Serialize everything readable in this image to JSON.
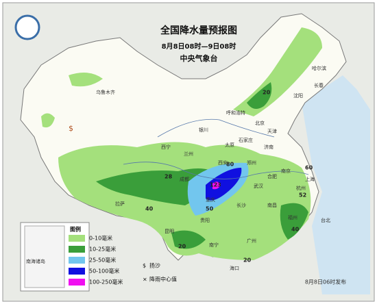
{
  "header": {
    "title": "全国降水量预报图",
    "period": "8月8日08时—9日08时",
    "agency": "中央气象台"
  },
  "legend": {
    "title": "图例",
    "items": [
      {
        "label": "0-10毫米",
        "color": "#a4e07c"
      },
      {
        "label": "10-25毫米",
        "color": "#3a9e3a"
      },
      {
        "label": "25-50毫米",
        "color": "#72c6ee"
      },
      {
        "label": "50-100毫米",
        "color": "#1010e0"
      },
      {
        "label": "100-250毫米",
        "color": "#f010f0"
      }
    ],
    "symbols": [
      {
        "label": "扬沙"
      },
      {
        "label": "降雨中心值"
      }
    ]
  },
  "places": [
    "乌鲁木齐",
    "拉萨",
    "西宁",
    "兰州",
    "银川",
    "呼和浩特",
    "北京",
    "天津",
    "石家庄",
    "太原",
    "济南",
    "郑州",
    "西安",
    "成都",
    "重庆",
    "贵阳",
    "昆明",
    "南宁",
    "广州",
    "海口",
    "长沙",
    "武汉",
    "南昌",
    "福州",
    "杭州",
    "南京",
    "合肥",
    "上海",
    "沈阳",
    "长春",
    "哈尔滨",
    "台北"
  ],
  "center_values": [
    20,
    28,
    40,
    80,
    123,
    60,
    52,
    40,
    50,
    20,
    20
  ],
  "inset_label": "南海诸岛",
  "footer": "8月8日06时发布"
}
